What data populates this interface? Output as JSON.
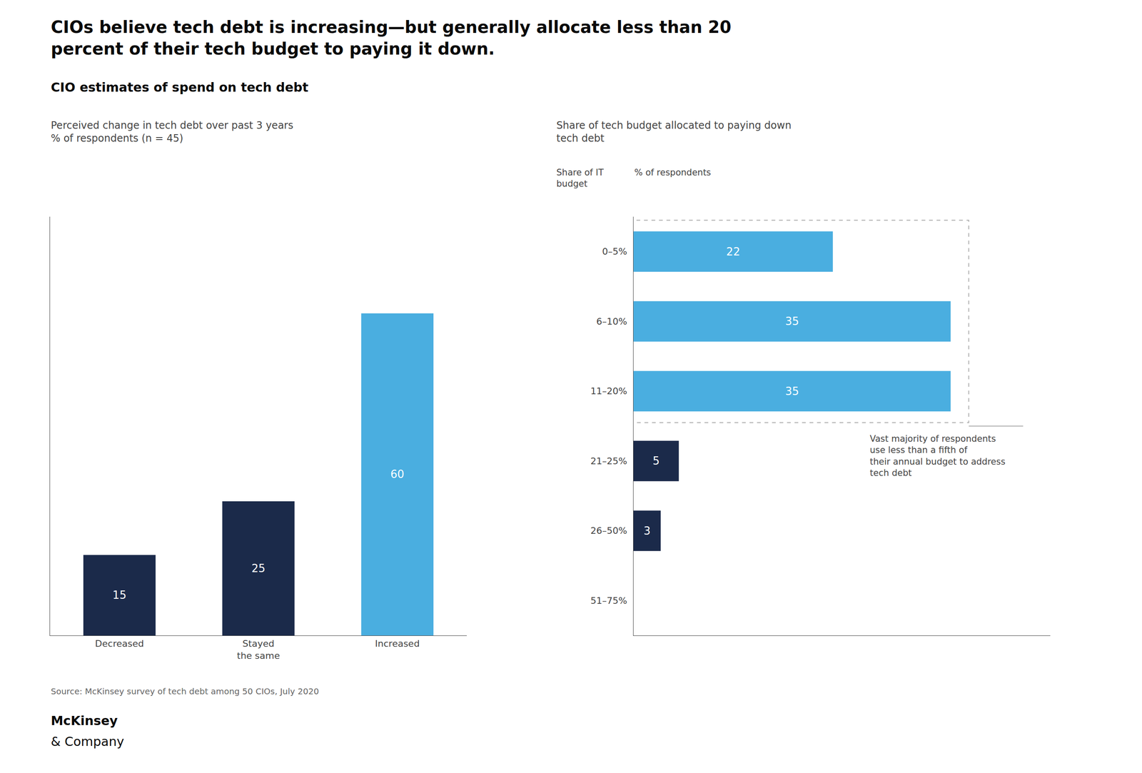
{
  "title": "CIOs believe tech debt is increasing—but generally allocate less than 20\npercent of their tech budget to paying it down.",
  "subtitle": "CIO estimates of spend on tech debt",
  "annotations": [
    "Source: McKinsey survey of tech debt among 50 CIOs, July 2020",
    "McKinsey",
    "& Company"
  ],
  "chart_data": [
    {
      "type": "bar",
      "title": "Perceived change in tech debt over past 3 years\n% of respondents (n = 45)",
      "categories": [
        "Decreased",
        "Stayed\nthe same",
        "Increased"
      ],
      "values": [
        15,
        25,
        60
      ],
      "colors": [
        "#1b2a4a",
        "#1b2a4a",
        "#4aaee0"
      ],
      "ylim": [
        0,
        78
      ],
      "yticks": [],
      "grid": false,
      "data_labels": true,
      "tick_labels": "x"
    },
    {
      "type": "bar",
      "orientation": "horizontal",
      "title": "Share of tech budget allocated to paying down\ntech debt",
      "ylabel": "Share of IT\nbudget",
      "xlabel": "% of respondents",
      "categories": [
        "0–5%",
        "6–10%",
        "11–20%",
        "21–25%",
        "26–50%",
        "51–75%"
      ],
      "values": [
        22,
        35,
        35,
        5,
        3,
        0
      ],
      "value_labels": [
        "22",
        "35",
        "35",
        "5",
        "3",
        null
      ],
      "colors": [
        "#4aaee0",
        "#4aaee0",
        "#4aaee0",
        "#1b2a4a",
        "#1b2a4a",
        "#1b2a4a"
      ],
      "xlim": [
        0,
        46
      ],
      "xticks": [],
      "grid": false,
      "data_labels": true,
      "tick_labels": "y",
      "annotations": [
        "Vast majority of respondents\nuse less than a fifth of\ntheir annual budget to address\ntech debt"
      ]
    }
  ]
}
